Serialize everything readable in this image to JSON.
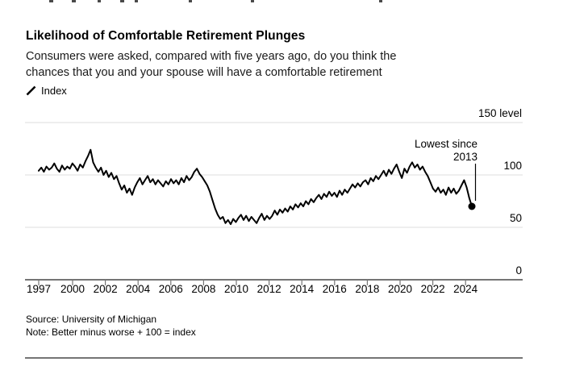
{
  "header": {
    "title": "Likelihood of Comfortable Retirement Plunges",
    "subtitle_line1": "Consumers were asked, compared with five years ago, do you think the",
    "subtitle_line2": "chances that you and your spouse will have a comfortable retirement",
    "legend_label": "Index"
  },
  "footer": {
    "source": "Source: University of Michigan",
    "note": "Note: Better minus worse + 100 = index"
  },
  "colors": {
    "line": "#000000",
    "grid": "#dcdcdc",
    "axis": "#757575",
    "text": "#000000"
  },
  "chart_data": {
    "type": "line",
    "title": "Likelihood of Comfortable Retirement Plunges",
    "series_name": "Index",
    "legend_position": "top-left",
    "grid": "horizontal",
    "ylim": [
      0,
      155
    ],
    "y_ticks": [
      150,
      100,
      50,
      0
    ],
    "y_tick_labels": [
      "150 level",
      "100",
      "50",
      "0"
    ],
    "x_tick_years": [
      1997,
      2000,
      2002,
      2004,
      2006,
      2008,
      2010,
      2012,
      2014,
      2016,
      2018,
      2020,
      2022,
      2024
    ],
    "annotation": {
      "line1": "Lowest since",
      "line2": "2013",
      "points_to_value": 70
    },
    "x_start_year": 1997,
    "points_per_year": 6,
    "values": [
      104,
      107,
      103,
      108,
      105,
      107,
      111,
      106,
      103,
      109,
      105,
      108,
      106,
      111,
      108,
      104,
      110,
      107,
      113,
      118,
      124,
      112,
      107,
      103,
      107,
      100,
      104,
      98,
      102,
      96,
      99,
      92,
      86,
      90,
      83,
      87,
      81,
      88,
      93,
      97,
      91,
      95,
      99,
      93,
      96,
      91,
      95,
      92,
      89,
      94,
      91,
      96,
      92,
      95,
      91,
      97,
      93,
      99,
      95,
      98,
      103,
      106,
      101,
      98,
      94,
      90,
      84,
      76,
      68,
      62,
      58,
      60,
      54,
      57,
      53,
      58,
      55,
      59,
      62,
      57,
      61,
      56,
      60,
      57,
      54,
      59,
      63,
      57,
      61,
      58,
      61,
      66,
      62,
      67,
      64,
      68,
      65,
      70,
      67,
      72,
      69,
      73,
      70,
      75,
      72,
      77,
      74,
      78,
      81,
      77,
      82,
      79,
      84,
      80,
      83,
      79,
      85,
      81,
      86,
      83,
      87,
      91,
      88,
      92,
      89,
      93,
      95,
      91,
      97,
      94,
      99,
      96,
      100,
      104,
      99,
      105,
      101,
      106,
      110,
      103,
      97,
      106,
      102,
      108,
      112,
      107,
      110,
      105,
      108,
      103,
      99,
      93,
      87,
      84,
      88,
      83,
      86,
      81,
      88,
      83,
      87,
      82,
      85,
      90,
      95,
      88,
      78,
      70
    ]
  }
}
